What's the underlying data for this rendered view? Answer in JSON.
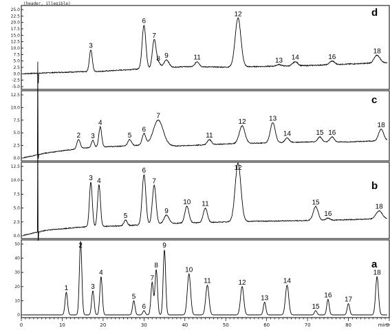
{
  "figure": {
    "header_text": "(header, illegible)",
    "x_unit": "min",
    "colors": {
      "trace": "#000000",
      "background": "#ffffff",
      "axis": "#000000"
    }
  },
  "chart_data": {
    "type": "line",
    "x_axis": {
      "range": [
        0,
        90
      ],
      "unit": "min",
      "ticks": [
        0,
        10,
        20,
        30,
        40,
        50,
        60,
        70,
        80,
        90
      ]
    },
    "grid": false,
    "panels": [
      {
        "letter": "d",
        "y_ticks": [
          "25.0",
          "22.5",
          "20.0",
          "17.5",
          "15.0",
          "12.5",
          "10.0",
          "7.5",
          "5.0",
          "2.5",
          "0.0",
          "-2.5",
          "-5.0"
        ],
        "y_range": [
          -5,
          25
        ],
        "baseline": [
          [
            0,
            0
          ],
          [
            10,
            0.6
          ],
          [
            20,
            1.0
          ],
          [
            30,
            2.0
          ],
          [
            40,
            2.8
          ],
          [
            50,
            2.6
          ],
          [
            60,
            2.9
          ],
          [
            70,
            3.2
          ],
          [
            80,
            3.8
          ],
          [
            90,
            4.4
          ]
        ],
        "injection_peaks": [
          {
            "x": 4.0,
            "top": -1.5,
            "bottom": -3.5
          }
        ],
        "peaks": [
          {
            "label": "3",
            "x": 17.0,
            "height": 8.5,
            "width": 0.35
          },
          {
            "label": "6",
            "x": 30.0,
            "height": 17.0,
            "width": 0.45
          },
          {
            "label": "7",
            "x": 32.5,
            "height": 11.0,
            "width": 0.45
          },
          {
            "label": "8",
            "x": 33.5,
            "height": 2.0,
            "width": 0.5
          },
          {
            "label": "9",
            "x": 35.5,
            "height": 3.0,
            "width": 0.6
          },
          {
            "label": "11",
            "x": 43.0,
            "height": 2.0,
            "width": 0.5
          },
          {
            "label": "12",
            "x": 53.0,
            "height": 19.0,
            "width": 0.7
          },
          {
            "label": "13",
            "x": 63.0,
            "height": 0.6,
            "width": 0.6
          },
          {
            "label": "14",
            "x": 67.0,
            "height": 1.6,
            "width": 0.6
          },
          {
            "label": "16",
            "x": 76.0,
            "height": 1.4,
            "width": 0.6
          },
          {
            "label": "18",
            "x": 87.0,
            "height": 3.0,
            "width": 0.7
          }
        ]
      },
      {
        "letter": "c",
        "y_ticks": [
          "12.5",
          "10.0",
          "7.5",
          "5.0",
          "2.5",
          "0.0"
        ],
        "y_range": [
          0,
          12.5
        ],
        "baseline": [
          [
            0,
            0
          ],
          [
            6,
            1.0
          ],
          [
            15,
            2.0
          ],
          [
            20,
            2.2
          ],
          [
            30,
            2.6
          ],
          [
            38,
            2.4
          ],
          [
            50,
            2.8
          ],
          [
            60,
            3.0
          ],
          [
            70,
            3.2
          ],
          [
            80,
            3.2
          ],
          [
            90,
            3.5
          ]
        ],
        "injection_peaks": [
          {
            "x": 4.0,
            "top": 19.0,
            "bottom": 0
          }
        ],
        "peaks": [
          {
            "label": "2",
            "x": 14.0,
            "height": 1.8,
            "width": 0.4
          },
          {
            "label": "3",
            "x": 17.5,
            "height": 1.4,
            "width": 0.35
          },
          {
            "label": "4",
            "x": 19.3,
            "height": 4.0,
            "width": 0.35
          },
          {
            "label": "5",
            "x": 26.5,
            "height": 1.2,
            "width": 0.45
          },
          {
            "label": "6",
            "x": 30.0,
            "height": 2.2,
            "width": 0.45
          },
          {
            "label": "7",
            "x": 33.5,
            "height": 5.0,
            "width": 1.2
          },
          {
            "label": "11",
            "x": 46.0,
            "height": 1.0,
            "width": 0.5
          },
          {
            "label": "12",
            "x": 54.0,
            "height": 3.5,
            "width": 0.7
          },
          {
            "label": "13",
            "x": 61.5,
            "height": 4.0,
            "width": 0.6
          },
          {
            "label": "14",
            "x": 65.0,
            "height": 0.9,
            "width": 0.5
          },
          {
            "label": "15",
            "x": 73.0,
            "height": 1.0,
            "width": 0.5
          },
          {
            "label": "16",
            "x": 76.0,
            "height": 1.0,
            "width": 0.5
          },
          {
            "label": "18",
            "x": 88.0,
            "height": 2.3,
            "width": 0.6
          }
        ]
      },
      {
        "letter": "b",
        "y_ticks": [
          "12.5",
          "10.0",
          "7.5",
          "5.0",
          "2.5",
          "0.0"
        ],
        "y_range": [
          0,
          12.5
        ],
        "baseline": [
          [
            0,
            0
          ],
          [
            6,
            1.0
          ],
          [
            15,
            1.6
          ],
          [
            25,
            1.8
          ],
          [
            35,
            2.2
          ],
          [
            45,
            2.4
          ],
          [
            55,
            2.6
          ],
          [
            65,
            2.7
          ],
          [
            75,
            2.8
          ],
          [
            85,
            3.0
          ],
          [
            90,
            3.0
          ]
        ],
        "injection_peaks": [
          {
            "x": 4.0,
            "top": 18.0,
            "bottom": -0.8
          }
        ],
        "peaks": [
          {
            "label": "3",
            "x": 17.0,
            "height": 8.0,
            "width": 0.35
          },
          {
            "label": "4",
            "x": 19.0,
            "height": 7.5,
            "width": 0.35
          },
          {
            "label": "5",
            "x": 25.5,
            "height": 1.0,
            "width": 0.4
          },
          {
            "label": "6",
            "x": 30.0,
            "height": 9.0,
            "width": 0.45
          },
          {
            "label": "7",
            "x": 32.5,
            "height": 7.0,
            "width": 0.45
          },
          {
            "label": "9",
            "x": 35.5,
            "height": 1.5,
            "width": 0.6
          },
          {
            "label": "10",
            "x": 40.5,
            "height": 3.0,
            "width": 0.5
          },
          {
            "label": "11",
            "x": 45.0,
            "height": 2.6,
            "width": 0.5
          },
          {
            "label": "12",
            "x": 53.0,
            "height": 10.5,
            "width": 0.7
          },
          {
            "label": "15",
            "x": 72.0,
            "height": 2.5,
            "width": 0.6
          },
          {
            "label": "16",
            "x": 75.0,
            "height": 0.4,
            "width": 0.5
          },
          {
            "label": "18",
            "x": 87.5,
            "height": 1.5,
            "width": 0.8
          }
        ]
      },
      {
        "letter": "a",
        "y_ticks": [
          "50",
          "40",
          "30",
          "20",
          "10",
          "0"
        ],
        "y_range": [
          0,
          50
        ],
        "baseline": [
          [
            0,
            0
          ],
          [
            90,
            0
          ]
        ],
        "injection_peaks": [],
        "peaks": [
          {
            "label": "1",
            "x": 11.0,
            "height": 16.0,
            "width": 0.3
          },
          {
            "label": "2",
            "x": 14.5,
            "height": 52.0,
            "width": 0.3
          },
          {
            "label": "3",
            "x": 17.5,
            "height": 17.0,
            "width": 0.3
          },
          {
            "label": "4",
            "x": 19.5,
            "height": 27.0,
            "width": 0.3
          },
          {
            "label": "5",
            "x": 27.5,
            "height": 10.0,
            "width": 0.3
          },
          {
            "label": "6",
            "x": 30.0,
            "height": 3.0,
            "width": 0.3
          },
          {
            "label": "7",
            "x": 32.0,
            "height": 23.0,
            "width": 0.3
          },
          {
            "label": "8",
            "x": 33.0,
            "height": 32.0,
            "width": 0.3
          },
          {
            "label": "9",
            "x": 35.0,
            "height": 46.0,
            "width": 0.3
          },
          {
            "label": "10",
            "x": 41.0,
            "height": 29.0,
            "width": 0.4
          },
          {
            "label": "11",
            "x": 45.5,
            "height": 21.0,
            "width": 0.4
          },
          {
            "label": "12",
            "x": 54.0,
            "height": 20.0,
            "width": 0.4
          },
          {
            "label": "13",
            "x": 59.5,
            "height": 9.0,
            "width": 0.3
          },
          {
            "label": "14",
            "x": 65.0,
            "height": 21.0,
            "width": 0.4
          },
          {
            "label": "15",
            "x": 72.0,
            "height": 3.0,
            "width": 0.3
          },
          {
            "label": "16",
            "x": 75.0,
            "height": 11.0,
            "width": 0.3
          },
          {
            "label": "17",
            "x": 80.0,
            "height": 8.0,
            "width": 0.3
          },
          {
            "label": "18",
            "x": 87.0,
            "height": 27.0,
            "width": 0.35
          }
        ]
      }
    ]
  }
}
